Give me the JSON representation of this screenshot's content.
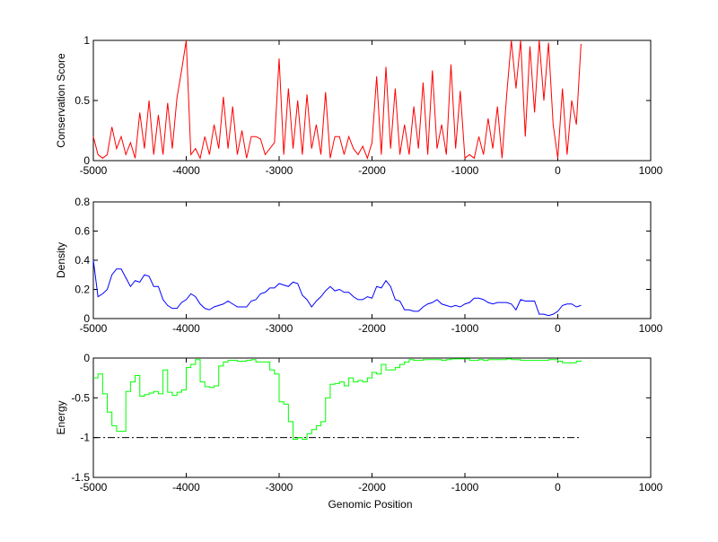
{
  "chart_data": [
    {
      "type": "line",
      "title": "",
      "xlabel": "",
      "ylabel": "Conservation Score",
      "xlim": [
        -5000,
        1000
      ],
      "ylim": [
        0,
        1
      ],
      "xticks": [
        "-5000",
        "-4000",
        "-3000",
        "-2000",
        "-1000",
        "0",
        "1000"
      ],
      "yticks": [
        "0",
        "0.5",
        "1"
      ],
      "ytick_values": [
        0,
        0.5,
        1
      ],
      "color": "#ff0000",
      "x_start": -5000,
      "x_step": 50,
      "values": [
        0.2,
        0.05,
        0.02,
        0.05,
        0.28,
        0.1,
        0.2,
        0.05,
        0.15,
        0.02,
        0.4,
        0.1,
        0.5,
        0.05,
        0.38,
        0.05,
        0.48,
        0.1,
        0.52,
        0.75,
        1.0,
        0.05,
        0.1,
        0.02,
        0.2,
        0.05,
        0.3,
        0.1,
        0.53,
        0.1,
        0.45,
        0.05,
        0.25,
        0.02,
        0.2,
        0.2,
        0.18,
        0.05,
        0.1,
        0.15,
        0.85,
        0.05,
        0.6,
        0.1,
        0.5,
        0.05,
        0.55,
        0.1,
        0.3,
        0.05,
        0.57,
        0.02,
        0.2,
        0.2,
        0.05,
        0.2,
        0.1,
        0.05,
        0.12,
        0.02,
        0.15,
        0.7,
        0.05,
        0.78,
        0.1,
        0.6,
        0.05,
        0.3,
        0.05,
        0.45,
        0.1,
        0.65,
        0.05,
        0.75,
        0.1,
        0.3,
        0.05,
        0.8,
        0.1,
        0.58,
        0.02,
        0.05,
        0.02,
        0.2,
        0.05,
        0.35,
        0.1,
        0.45,
        0.02,
        0.55,
        1.0,
        0.6,
        1.0,
        0.2,
        0.95,
        0.4,
        1.0,
        0.5,
        0.98,
        0.3,
        0.02,
        0.6,
        0.05,
        0.5,
        0.3,
        0.97
      ]
    },
    {
      "type": "line",
      "title": "",
      "xlabel": "",
      "ylabel": "Density",
      "xlim": [
        -5000,
        1000
      ],
      "ylim": [
        0,
        0.8
      ],
      "xticks": [
        "-5000",
        "-4000",
        "-3000",
        "-2000",
        "-1000",
        "0",
        "1000"
      ],
      "yticks": [
        "0",
        "0.2",
        "0.4",
        "0.6",
        "0.8"
      ],
      "ytick_values": [
        0,
        0.2,
        0.4,
        0.6,
        0.8
      ],
      "color": "#0000ff",
      "x_start": -5000,
      "x_step": 50,
      "values": [
        0.4,
        0.15,
        0.17,
        0.2,
        0.3,
        0.34,
        0.34,
        0.28,
        0.22,
        0.26,
        0.25,
        0.3,
        0.29,
        0.22,
        0.22,
        0.13,
        0.09,
        0.07,
        0.07,
        0.11,
        0.13,
        0.17,
        0.15,
        0.1,
        0.07,
        0.06,
        0.08,
        0.09,
        0.1,
        0.12,
        0.1,
        0.08,
        0.08,
        0.08,
        0.12,
        0.13,
        0.17,
        0.18,
        0.21,
        0.21,
        0.24,
        0.23,
        0.22,
        0.25,
        0.24,
        0.16,
        0.13,
        0.08,
        0.12,
        0.15,
        0.19,
        0.22,
        0.19,
        0.2,
        0.18,
        0.18,
        0.15,
        0.13,
        0.13,
        0.15,
        0.14,
        0.22,
        0.21,
        0.26,
        0.22,
        0.13,
        0.12,
        0.06,
        0.06,
        0.05,
        0.05,
        0.08,
        0.1,
        0.11,
        0.13,
        0.1,
        0.09,
        0.08,
        0.09,
        0.08,
        0.1,
        0.11,
        0.14,
        0.14,
        0.13,
        0.11,
        0.1,
        0.11,
        0.11,
        0.11,
        0.1,
        0.06,
        0.13,
        0.12,
        0.12,
        0.12,
        0.03,
        0.03,
        0.02,
        0.03,
        0.05,
        0.09,
        0.1,
        0.1,
        0.08,
        0.09
      ]
    },
    {
      "type": "line",
      "title": "",
      "xlabel": "Genomic Position",
      "ylabel": "Energy",
      "xlim": [
        -5000,
        1000
      ],
      "ylim": [
        -1.5,
        0
      ],
      "xticks": [
        "-5000",
        "-4000",
        "-3000",
        "-2000",
        "-1000",
        "0",
        "1000"
      ],
      "yticks": [
        "-1.5",
        "-1",
        "-0.5",
        "0"
      ],
      "ytick_values": [
        -1.5,
        -1,
        -0.5,
        0
      ],
      "color": "#00ff00",
      "threshold": {
        "y": -1,
        "x_range": [
          -5000,
          250
        ],
        "color": "#000000",
        "style": "dash-dot"
      },
      "x_start": -5000,
      "x_step": 50,
      "values": [
        -0.25,
        -0.2,
        -0.45,
        -0.68,
        -0.85,
        -0.92,
        -0.92,
        -0.42,
        -0.3,
        -0.22,
        -0.48,
        -0.46,
        -0.44,
        -0.42,
        -0.45,
        -0.15,
        -0.43,
        -0.47,
        -0.43,
        -0.4,
        -0.12,
        -0.08,
        -0.02,
        -0.3,
        -0.36,
        -0.37,
        -0.35,
        -0.1,
        -0.05,
        -0.03,
        -0.03,
        -0.04,
        -0.04,
        -0.03,
        -0.02,
        -0.05,
        -0.05,
        -0.05,
        -0.15,
        -0.2,
        -0.55,
        -0.58,
        -0.8,
        -1.02,
        -1.0,
        -1.02,
        -0.95,
        -0.9,
        -0.85,
        -0.8,
        -0.5,
        -0.33,
        -0.32,
        -0.3,
        -0.35,
        -0.25,
        -0.3,
        -0.28,
        -0.3,
        -0.25,
        -0.18,
        -0.2,
        -0.08,
        -0.15,
        -0.15,
        -0.12,
        -0.08,
        -0.05,
        -0.02,
        -0.03,
        -0.03,
        -0.02,
        -0.02,
        -0.02,
        -0.02,
        -0.03,
        -0.02,
        -0.01,
        -0.01,
        -0.01,
        -0.01,
        -0.03,
        -0.03,
        -0.02,
        -0.03,
        -0.02,
        -0.02,
        -0.02,
        -0.02,
        -0.01,
        -0.02,
        -0.02,
        -0.03,
        -0.03,
        -0.03,
        -0.03,
        -0.03,
        -0.03,
        -0.02,
        -0.02,
        -0.04,
        -0.06,
        -0.06,
        -0.06,
        -0.04,
        -0.03
      ]
    }
  ]
}
